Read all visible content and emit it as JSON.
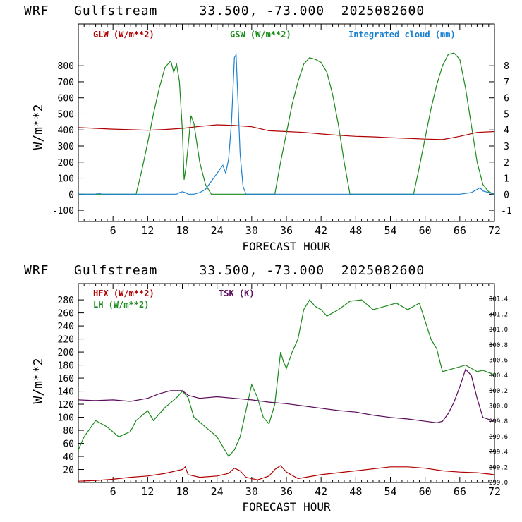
{
  "chart_data": [
    {
      "type": "line",
      "title": "WRF   Gulfstream     33.500, -73.000  2025082600",
      "xlabel": "FORECAST HOUR",
      "ylabel": "W/m**2",
      "ylim": [
        -170,
        1060
      ],
      "y2lim": [
        -1.7,
        10.6
      ],
      "xlim": [
        0,
        72
      ],
      "xticks": [
        6,
        12,
        18,
        24,
        30,
        36,
        42,
        48,
        54,
        60,
        66,
        72
      ],
      "yticks": [
        -100,
        0,
        100,
        200,
        300,
        400,
        500,
        600,
        700,
        800
      ],
      "y2ticks": [
        -1,
        0,
        1,
        2,
        3,
        4,
        5,
        6,
        7,
        8
      ],
      "legend": [
        {
          "label": "GLW (W/m**2)",
          "color": "#b00000"
        },
        {
          "label": "GSW (W/m**2)",
          "color": "#1a8a1a"
        },
        {
          "label": "Integrated cloud (mm)",
          "color": "#1a80d0"
        }
      ],
      "series": [
        {
          "name": "GLW (W/m**2)",
          "color": "#b00000",
          "axis": "left",
          "x": [
            0,
            3,
            6,
            9,
            12,
            15,
            18,
            21,
            24,
            27,
            30,
            33,
            36,
            39,
            42,
            45,
            48,
            51,
            54,
            57,
            60,
            63,
            66,
            69,
            72
          ],
          "y": [
            415,
            410,
            405,
            402,
            398,
            403,
            410,
            422,
            432,
            428,
            420,
            395,
            390,
            385,
            375,
            367,
            360,
            357,
            352,
            348,
            343,
            340,
            360,
            385,
            390
          ]
        },
        {
          "name": "GSW (W/m**2)",
          "color": "#1a8a1a",
          "axis": "left",
          "x": [
            0,
            10,
            11,
            12,
            13,
            14,
            15,
            16,
            16.5,
            17,
            17.5,
            18,
            18.3,
            18.6,
            19,
            19.5,
            20,
            21,
            22,
            23,
            34,
            35,
            36,
            37,
            38,
            39,
            40,
            41,
            42,
            43,
            44,
            45,
            46,
            47,
            58,
            59,
            60,
            61,
            62,
            63,
            64,
            65,
            66,
            67,
            68,
            69,
            70,
            71,
            72
          ],
          "y": [
            0,
            0,
            150,
            320,
            500,
            660,
            790,
            830,
            760,
            810,
            700,
            400,
            90,
            160,
            300,
            490,
            440,
            200,
            60,
            0,
            0,
            200,
            380,
            560,
            700,
            810,
            850,
            840,
            820,
            760,
            620,
            430,
            200,
            0,
            0,
            170,
            350,
            530,
            680,
            800,
            870,
            880,
            840,
            660,
            430,
            200,
            60,
            15,
            0
          ]
        },
        {
          "name": "Integrated cloud (mm)",
          "color": "#1a80d0",
          "axis": "right",
          "x": [
            0,
            3,
            3.5,
            4,
            17,
            17.5,
            18,
            18.5,
            19,
            20,
            21,
            22,
            23,
            24,
            25,
            25.5,
            26,
            26.5,
            27,
            27.3,
            27.6,
            28,
            28.5,
            29,
            66,
            68,
            69,
            69.5,
            70,
            71,
            72
          ],
          "y": [
            0,
            0,
            0.07,
            0,
            0,
            0.1,
            0.15,
            0.1,
            0,
            0,
            0.1,
            0.3,
            0.8,
            1.3,
            1.8,
            1.3,
            2.2,
            4.5,
            8.5,
            8.7,
            6.0,
            2.5,
            0.5,
            0,
            0,
            0.1,
            0.3,
            0.4,
            0.2,
            0.1,
            0
          ]
        }
      ]
    },
    {
      "type": "line",
      "title": "WRF   Gulfstream     33.500, -73.000  2025082600",
      "xlabel": "FORECAST HOUR",
      "ylabel": "W/m**2",
      "ylim": [
        0,
        305
      ],
      "y2lim": [
        299.0,
        301.6
      ],
      "xlim": [
        0,
        72
      ],
      "xticks": [
        6,
        12,
        18,
        24,
        30,
        36,
        42,
        48,
        54,
        60,
        66,
        72
      ],
      "yticks": [
        20,
        40,
        60,
        80,
        100,
        120,
        140,
        160,
        180,
        200,
        220,
        240,
        260,
        280
      ],
      "y2ticks": [
        "299.0",
        "299.2",
        "299.4",
        "299.6",
        "299.8",
        "300.0",
        "300.2",
        "300.4",
        "300.6",
        "300.8",
        "301.0",
        "301.2",
        "301.4"
      ],
      "legend": [
        {
          "label": "HFX (W/m**2)",
          "color": "#b00000"
        },
        {
          "label": "LH  (W/m**2)",
          "color": "#1a8a1a"
        },
        {
          "label": "TSK (K)",
          "color": "#5a0a5a"
        }
      ],
      "series": [
        {
          "name": "HFX (W/m**2)",
          "color": "#b00000",
          "axis": "left",
          "x": [
            0,
            3,
            6,
            9,
            12,
            15,
            18,
            18.5,
            19,
            21,
            24,
            26,
            27,
            28,
            29,
            31,
            33,
            34,
            35,
            36,
            38,
            42,
            48,
            54,
            57,
            60,
            63,
            66,
            69,
            72
          ],
          "y": [
            2,
            3,
            5,
            8,
            10,
            14,
            20,
            24,
            12,
            8,
            10,
            14,
            22,
            18,
            8,
            4,
            10,
            20,
            26,
            16,
            6,
            12,
            18,
            24,
            24,
            22,
            18,
            16,
            15,
            12
          ]
        },
        {
          "name": "LH  (W/m**2)",
          "color": "#1a8a1a",
          "axis": "left",
          "x": [
            0,
            1,
            3,
            5,
            7,
            9,
            10,
            12,
            13,
            15,
            17,
            18,
            19,
            20,
            22,
            24,
            26,
            27,
            28,
            29,
            30,
            31,
            32,
            33,
            34,
            35,
            35.5,
            36,
            37,
            38,
            39,
            40,
            41,
            42,
            43,
            45,
            47,
            49,
            51,
            53,
            55,
            57,
            59,
            61,
            62,
            63,
            65,
            67,
            69,
            70,
            72
          ],
          "y": [
            50,
            70,
            95,
            85,
            70,
            78,
            95,
            110,
            95,
            115,
            130,
            140,
            130,
            100,
            85,
            70,
            40,
            50,
            70,
            110,
            150,
            130,
            100,
            90,
            120,
            200,
            185,
            175,
            200,
            220,
            265,
            280,
            270,
            265,
            255,
            265,
            278,
            280,
            265,
            270,
            275,
            265,
            275,
            220,
            205,
            170,
            175,
            180,
            170,
            172,
            165
          ]
        },
        {
          "name": "TSK (K)",
          "color": "#5a0a5a",
          "axis": "right",
          "x": [
            0,
            3,
            6,
            9,
            12,
            14,
            16,
            18,
            19,
            21,
            24,
            27,
            30,
            33,
            36,
            39,
            42,
            45,
            48,
            51,
            54,
            57,
            60,
            62,
            63,
            64,
            65,
            66,
            67,
            68,
            69,
            70,
            72
          ],
          "y": [
            300.08,
            300.07,
            300.08,
            300.06,
            300.1,
            300.16,
            300.2,
            300.2,
            300.14,
            300.1,
            300.12,
            300.1,
            300.08,
            300.05,
            300.03,
            300.0,
            299.97,
            299.94,
            299.92,
            299.88,
            299.85,
            299.83,
            299.8,
            299.78,
            299.8,
            299.9,
            300.05,
            300.25,
            300.48,
            300.4,
            300.1,
            299.85,
            299.8
          ]
        }
      ]
    }
  ]
}
